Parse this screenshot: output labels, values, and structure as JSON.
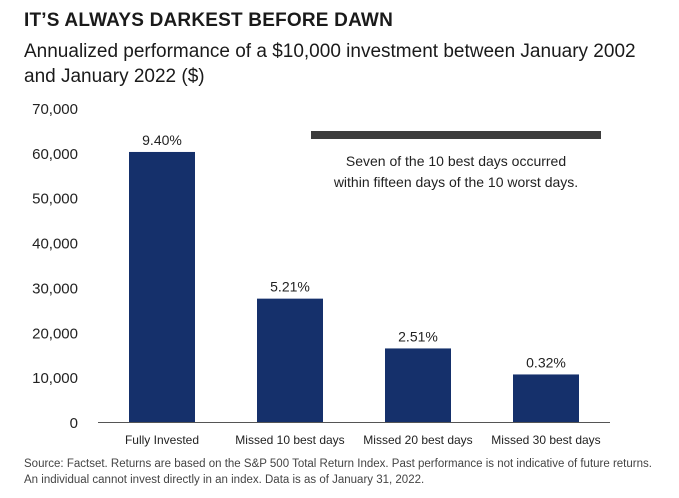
{
  "chart_data": {
    "type": "bar",
    "title": "IT’S ALWAYS DARKEST BEFORE DAWN",
    "subtitle": "Annualized performance of a $10,000 investment between January 2002 and January 2022 ($)",
    "categories": [
      "Fully Invested",
      "Missed 10 best days",
      "Missed 20 best days",
      "Missed 30 best days"
    ],
    "values": [
      60200,
      27500,
      16400,
      10600
    ],
    "data_labels": [
      "9.40%",
      "5.21%",
      "2.51%",
      "0.32%"
    ],
    "ylim": [
      0,
      70000
    ],
    "yticks": [
      "0",
      "10,000",
      "20,000",
      "30,000",
      "40,000",
      "50,000",
      "60,000",
      "70,000"
    ],
    "bar_color": "#15306b",
    "annotation": {
      "line1": "Seven of the 10 best days occurred",
      "line2": "within fifteen days of the 10 worst days.",
      "bar_color": "#3d3d3d"
    },
    "grid": false,
    "legend": "none"
  },
  "source": "Source: Factset. Returns are based on the S&P 500 Total Return Index. Past performance is not indicative of future returns. An individual cannot invest directly in an index. Data is as of January 31, 2022."
}
